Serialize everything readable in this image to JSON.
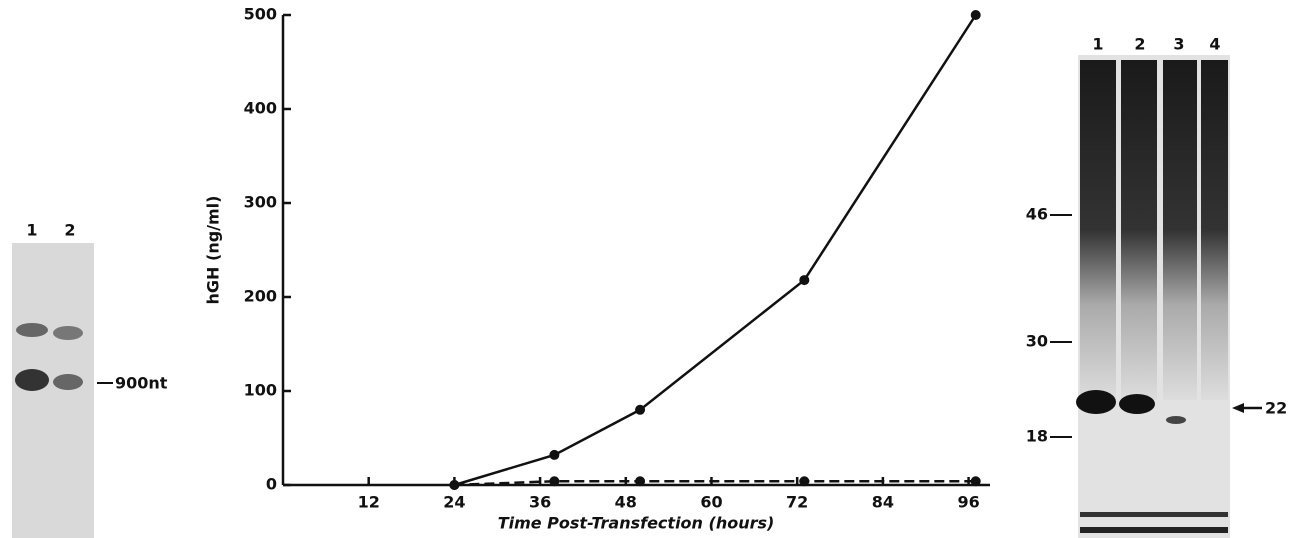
{
  "chart_data": {
    "type": "line",
    "y_label": "hGH (ng/ml)",
    "x_label": "Time Post-Transfection (hours)",
    "x": [
      24,
      38,
      50,
      73,
      97
    ],
    "series": [
      {
        "values": [
          0,
          32,
          80,
          218,
          500
        ],
        "color": "#111111",
        "line_style": "solid"
      },
      {
        "values": [
          0,
          4,
          4,
          4,
          4
        ],
        "color": "#111111",
        "line_style": "dashed"
      }
    ],
    "xlim": [
      0,
      99
    ],
    "xticks": [
      12,
      24,
      36,
      48,
      60,
      72,
      84,
      96
    ],
    "ylim": [
      0,
      500
    ],
    "yticks": [
      0,
      100,
      200,
      300,
      400,
      500
    ]
  },
  "left_gel": {
    "lanes": [
      "1",
      "2"
    ],
    "marker": "900nt"
  },
  "right_gel": {
    "lanes": [
      "1",
      "2",
      "3",
      "4"
    ],
    "markers": [
      "46",
      "30",
      "18"
    ],
    "arrow_label": "22"
  }
}
